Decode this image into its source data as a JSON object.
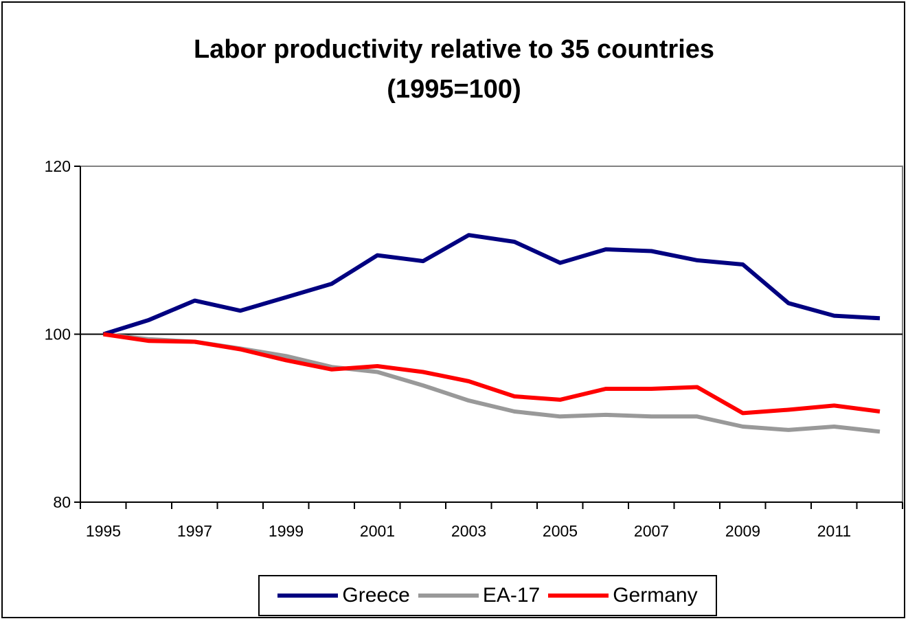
{
  "chart_data": {
    "type": "line",
    "title_line1": "Labor productivity relative to 35 countries",
    "title_line2": "(1995=100)",
    "x": [
      1995,
      1996,
      1997,
      1998,
      1999,
      2000,
      2001,
      2002,
      2003,
      2004,
      2005,
      2006,
      2007,
      2008,
      2009,
      2010,
      2011,
      2012
    ],
    "x_tick_labels": [
      "1995",
      "1997",
      "1999",
      "2001",
      "2003",
      "2005",
      "2007",
      "2009",
      "2011"
    ],
    "y_tick_labels": [
      "80",
      "100",
      "120"
    ],
    "ylim": [
      80,
      120
    ],
    "reference_line": 100,
    "grid": false,
    "legend_position": "bottom",
    "series": [
      {
        "name": "Greece",
        "color": "#000080",
        "values": [
          100,
          101.7,
          104,
          102.8,
          104.4,
          106,
          109.4,
          108.7,
          111.8,
          111,
          108.5,
          110.1,
          109.9,
          108.8,
          108.3,
          103.7,
          102.2,
          101.9
        ]
      },
      {
        "name": "EA-17",
        "color": "#999999",
        "values": [
          100,
          99.4,
          99.1,
          98.3,
          97.4,
          96.1,
          95.5,
          93.9,
          92.1,
          90.8,
          90.2,
          90.4,
          90.2,
          90.2,
          89,
          88.6,
          89,
          88.4
        ]
      },
      {
        "name": "Germany",
        "color": "#ff0000",
        "values": [
          100,
          99.2,
          99.1,
          98.2,
          96.9,
          95.8,
          96.2,
          95.5,
          94.4,
          92.6,
          92.2,
          93.5,
          93.5,
          93.7,
          90.6,
          91,
          91.5,
          90.8
        ]
      }
    ]
  }
}
